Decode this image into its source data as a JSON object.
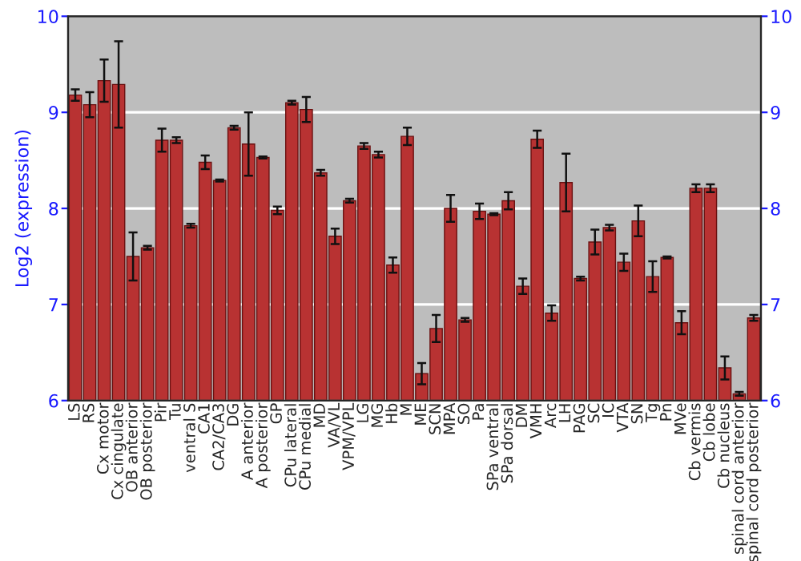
{
  "chart_data": {
    "type": "bar",
    "ylabel": "Log2 (expression)",
    "categories": [
      "LS",
      "RS",
      "Cx motor",
      "Cx cingulate",
      "OB anterior",
      "OB posterior",
      "Pir",
      "Tu",
      "ventral S",
      "CA1",
      "CA2/CA3",
      "DG",
      "A anterior",
      "A posterior",
      "GP",
      "CPu lateral",
      "CPu medial",
      "MD",
      "VA/VL",
      "VPM/VPL",
      "LG",
      "MG",
      "Hb",
      "M",
      "ME",
      "SCN",
      "MPA",
      "SO",
      "Pa",
      "SPa ventral",
      "SPa dorsal",
      "DM",
      "VMH",
      "Arc",
      "LH",
      "PAG",
      "SC",
      "IC",
      "VTA",
      "SN",
      "Tg",
      "Pn",
      "MVe",
      "Cb vermis",
      "Cb lobe",
      "Cb nucleus",
      "spinal cord anterior",
      "spinal cord posterior"
    ],
    "values": [
      9.18,
      9.08,
      9.33,
      9.29,
      7.5,
      7.59,
      8.71,
      8.71,
      7.82,
      8.48,
      8.29,
      8.84,
      8.67,
      8.53,
      7.98,
      9.1,
      9.03,
      8.37,
      7.71,
      8.08,
      8.65,
      8.56,
      7.41,
      8.75,
      6.28,
      6.75,
      8.0,
      6.84,
      7.97,
      7.94,
      8.08,
      7.19,
      8.72,
      6.91,
      8.27,
      7.27,
      7.65,
      7.8,
      7.44,
      7.87,
      7.29,
      7.49,
      6.81,
      8.21,
      8.21,
      6.34,
      6.07,
      6.86
    ],
    "errors": [
      0.06,
      0.13,
      0.22,
      0.45,
      0.25,
      0.02,
      0.12,
      0.03,
      0.02,
      0.07,
      0.01,
      0.02,
      0.33,
      0.01,
      0.04,
      0.02,
      0.13,
      0.03,
      0.08,
      0.02,
      0.03,
      0.03,
      0.08,
      0.09,
      0.11,
      0.14,
      0.14,
      0.02,
      0.08,
      0.01,
      0.09,
      0.08,
      0.09,
      0.08,
      0.3,
      0.02,
      0.13,
      0.03,
      0.09,
      0.16,
      0.16,
      0.01,
      0.12,
      0.04,
      0.04,
      0.12,
      0.02,
      0.03
    ],
    "color": "#b83232",
    "ylim": [
      6,
      10
    ],
    "yticks": [
      6,
      7,
      8,
      9,
      10
    ],
    "y2lim": [
      6,
      10
    ],
    "y2ticks": [
      6,
      7,
      8,
      9,
      10
    ],
    "grid": "y"
  }
}
